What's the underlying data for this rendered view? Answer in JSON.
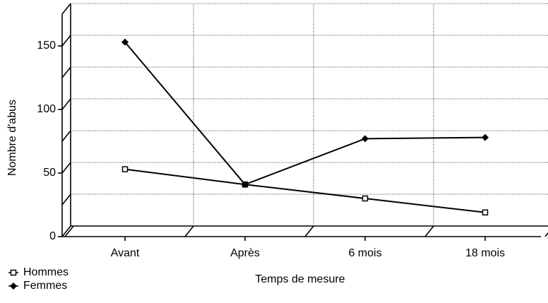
{
  "chart_data": {
    "type": "line",
    "categories": [
      "Avant",
      "Après",
      "6 mois",
      "18 mois"
    ],
    "series": [
      {
        "name": "Hommes",
        "color": "#000000",
        "marker": "open-square",
        "values": [
          53,
          41,
          30,
          19
        ]
      },
      {
        "name": "Femmes",
        "color": "#000000",
        "marker": "filled-diamond",
        "values": [
          153,
          41,
          77,
          78
        ]
      }
    ],
    "xlabel": "Temps de mesure",
    "ylabel": "Nombre d'abus",
    "ylim": [
      0,
      175
    ],
    "yticks": [
      0,
      50,
      100,
      150
    ],
    "grid_yticks": [
      0,
      25,
      50,
      75,
      100,
      125,
      150,
      175
    ],
    "grid": true,
    "legend": "lower left"
  }
}
